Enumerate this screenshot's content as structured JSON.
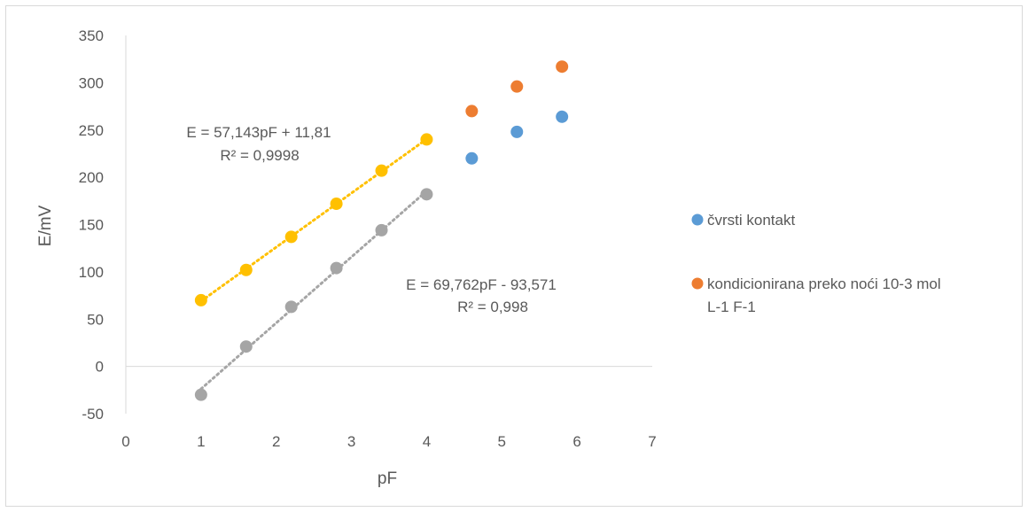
{
  "chart_data": {
    "type": "scatter",
    "xlabel": "pF",
    "ylabel": "E/mV",
    "xlim": [
      0,
      7
    ],
    "ylim": [
      -50,
      350
    ],
    "x_ticks": [
      0,
      1,
      2,
      3,
      4,
      5,
      6,
      7
    ],
    "y_ticks": [
      -50,
      0,
      50,
      100,
      150,
      200,
      250,
      300,
      350
    ],
    "grid": false,
    "legend_position": "right",
    "legend": [
      {
        "label": "čvrsti kontakt",
        "color": "#5B9BD5"
      },
      {
        "label_lines": [
          "kondicionirana preko noći 10-3 mol",
          "L-1 F-1"
        ],
        "color": "#ED7D31"
      }
    ],
    "series": [
      {
        "name": "čvrsti kontakt",
        "color": "#5B9BD5",
        "points": [
          [
            4.6,
            220
          ],
          [
            5.2,
            248
          ],
          [
            5.8,
            264
          ]
        ]
      },
      {
        "name": "kondicionirana preko noći 10-3 mol L-1 F-1",
        "color": "#ED7D31",
        "points": [
          [
            4.6,
            270
          ],
          [
            5.2,
            296
          ],
          [
            5.8,
            317
          ]
        ]
      },
      {
        "color": "#A5A5A5",
        "points": [
          [
            1.0,
            -30
          ],
          [
            1.6,
            21
          ],
          [
            2.2,
            63
          ],
          [
            2.8,
            104
          ],
          [
            3.4,
            144
          ],
          [
            4.0,
            182
          ]
        ],
        "trendline": {
          "slope": 69.762,
          "intercept": -93.571,
          "x_range": [
            1.0,
            4.0
          ]
        }
      },
      {
        "color": "#FFC000",
        "points": [
          [
            1.0,
            70
          ],
          [
            1.6,
            102
          ],
          [
            2.2,
            137
          ],
          [
            2.8,
            172
          ],
          [
            3.4,
            207
          ],
          [
            4.0,
            240
          ]
        ],
        "trendline": {
          "slope": 57.143,
          "intercept": 11.81,
          "x_range": [
            1.0,
            4.0
          ]
        }
      }
    ],
    "annotations": [
      {
        "lines": [
          "E = 57,143pF + 11,81",
          "R² = 0,9998"
        ]
      },
      {
        "lines": [
          "E = 69,762pF - 93,571",
          "R² = 0,998"
        ]
      }
    ]
  }
}
